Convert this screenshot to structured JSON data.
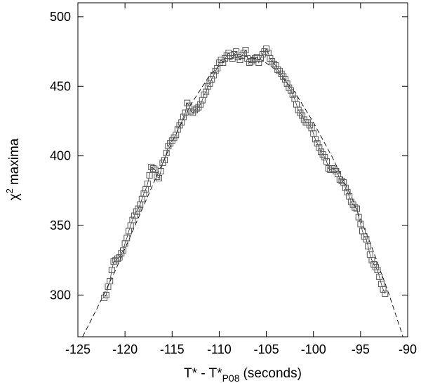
{
  "chart_data": {
    "type": "scatter",
    "title": "",
    "xlabel": {
      "main": "T* - T*",
      "sub": "P08",
      "unit": "(seconds)"
    },
    "ylabel": {
      "symbol": "χ",
      "sup": "2",
      "rest": "maxima"
    },
    "xlim": [
      -125,
      -90
    ],
    "ylim": [
      270,
      510
    ],
    "xticks": [
      -125,
      -120,
      -115,
      -110,
      -105,
      -100,
      -95,
      -90
    ],
    "yticks": [
      300,
      350,
      400,
      450,
      500
    ],
    "xtick_labels": [
      "-125",
      "-120",
      "-115",
      "-110",
      "-105",
      "-100",
      "-95",
      "-90"
    ],
    "ytick_labels": [
      "300",
      "350",
      "400",
      "450",
      "500"
    ],
    "grid": false,
    "legend": "none",
    "series": [
      {
        "style": "squares connected by thin line",
        "points": [
          [
            -122.2,
            298
          ],
          [
            -122.0,
            300
          ],
          [
            -121.8,
            306
          ],
          [
            -121.6,
            310
          ],
          [
            -121.4,
            318
          ],
          [
            -121.2,
            324
          ],
          [
            -121.0,
            325
          ],
          [
            -120.8,
            326
          ],
          [
            -120.6,
            327
          ],
          [
            -120.4,
            330
          ],
          [
            -120.2,
            332
          ],
          [
            -120.0,
            337
          ],
          [
            -119.8,
            341
          ],
          [
            -119.6,
            346
          ],
          [
            -119.4,
            350
          ],
          [
            -119.2,
            354
          ],
          [
            -119.0,
            357
          ],
          [
            -118.8,
            360
          ],
          [
            -118.6,
            362
          ],
          [
            -118.4,
            365
          ],
          [
            -118.2,
            369
          ],
          [
            -118.0,
            373
          ],
          [
            -117.8,
            376
          ],
          [
            -117.6,
            380
          ],
          [
            -117.4,
            386
          ],
          [
            -117.2,
            392
          ],
          [
            -117.0,
            391
          ],
          [
            -116.8,
            390
          ],
          [
            -116.6,
            385
          ],
          [
            -116.4,
            384
          ],
          [
            -116.2,
            389
          ],
          [
            -116.0,
            395
          ],
          [
            -115.8,
            397
          ],
          [
            -115.6,
            402
          ],
          [
            -115.4,
            407
          ],
          [
            -115.2,
            409
          ],
          [
            -115.0,
            411
          ],
          [
            -114.8,
            413
          ],
          [
            -114.6,
            415
          ],
          [
            -114.4,
            419
          ],
          [
            -114.2,
            422
          ],
          [
            -114.0,
            424
          ],
          [
            -113.8,
            428
          ],
          [
            -113.6,
            431
          ],
          [
            -113.4,
            438
          ],
          [
            -113.2,
            436
          ],
          [
            -113.0,
            432
          ],
          [
            -112.8,
            431
          ],
          [
            -112.6,
            433
          ],
          [
            -112.4,
            434
          ],
          [
            -112.2,
            435
          ],
          [
            -112.0,
            437
          ],
          [
            -111.8,
            440
          ],
          [
            -111.6,
            444
          ],
          [
            -111.4,
            446
          ],
          [
            -111.2,
            450
          ],
          [
            -111.0,
            452
          ],
          [
            -110.8,
            455
          ],
          [
            -110.6,
            458
          ],
          [
            -110.4,
            461
          ],
          [
            -110.2,
            463
          ],
          [
            -110.0,
            467
          ],
          [
            -109.8,
            469
          ],
          [
            -109.6,
            467
          ],
          [
            -109.4,
            470
          ],
          [
            -109.2,
            472
          ],
          [
            -109.0,
            474
          ],
          [
            -108.8,
            472
          ],
          [
            -108.6,
            470
          ],
          [
            -108.4,
            473
          ],
          [
            -108.2,
            475
          ],
          [
            -108.0,
            471
          ],
          [
            -107.8,
            469
          ],
          [
            -107.6,
            472
          ],
          [
            -107.4,
            474
          ],
          [
            -107.2,
            476
          ],
          [
            -107.0,
            470
          ],
          [
            -106.8,
            467
          ],
          [
            -106.6,
            468
          ],
          [
            -106.4,
            469
          ],
          [
            -106.2,
            470
          ],
          [
            -106.0,
            471
          ],
          [
            -105.8,
            467
          ],
          [
            -105.6,
            470
          ],
          [
            -105.4,
            473
          ],
          [
            -105.2,
            475
          ],
          [
            -105.0,
            477
          ],
          [
            -104.8,
            474
          ],
          [
            -104.6,
            470
          ],
          [
            -104.4,
            468
          ],
          [
            -104.2,
            466
          ],
          [
            -104.0,
            465
          ],
          [
            -103.8,
            462
          ],
          [
            -103.6,
            461
          ],
          [
            -103.4,
            459
          ],
          [
            -103.2,
            457
          ],
          [
            -103.0,
            455
          ],
          [
            -102.8,
            452
          ],
          [
            -102.6,
            449
          ],
          [
            -102.4,
            447
          ],
          [
            -102.2,
            444
          ],
          [
            -102.0,
            441
          ],
          [
            -101.8,
            437
          ],
          [
            -101.6,
            433
          ],
          [
            -101.4,
            431
          ],
          [
            -101.2,
            429
          ],
          [
            -101.0,
            426
          ],
          [
            -100.8,
            424
          ],
          [
            -100.6,
            424
          ],
          [
            -100.4,
            422
          ],
          [
            -100.2,
            420
          ],
          [
            -100.0,
            416
          ],
          [
            -99.8,
            412
          ],
          [
            -99.6,
            409
          ],
          [
            -99.4,
            406
          ],
          [
            -99.2,
            403
          ],
          [
            -99.0,
            401
          ],
          [
            -98.8,
            399
          ],
          [
            -98.6,
            396
          ],
          [
            -98.4,
            391
          ],
          [
            -98.2,
            390
          ],
          [
            -98.0,
            391
          ],
          [
            -97.8,
            390
          ],
          [
            -97.6,
            389
          ],
          [
            -97.4,
            387
          ],
          [
            -97.2,
            383
          ],
          [
            -97.0,
            382
          ],
          [
            -96.8,
            381
          ],
          [
            -96.6,
            377
          ],
          [
            -96.4,
            374
          ],
          [
            -96.2,
            371
          ],
          [
            -96.0,
            367
          ],
          [
            -95.8,
            365
          ],
          [
            -95.6,
            363
          ],
          [
            -95.4,
            362
          ],
          [
            -95.2,
            356
          ],
          [
            -95.0,
            351
          ],
          [
            -94.8,
            346
          ],
          [
            -94.6,
            342
          ],
          [
            -94.4,
            340
          ],
          [
            -94.2,
            335
          ],
          [
            -94.0,
            329
          ],
          [
            -93.8,
            325
          ],
          [
            -93.6,
            322
          ],
          [
            -93.4,
            320
          ],
          [
            -93.2,
            318
          ],
          [
            -93.0,
            313
          ],
          [
            -92.8,
            308
          ],
          [
            -92.6,
            304
          ],
          [
            -92.4,
            301
          ]
        ]
      },
      {
        "style": "dashed fit curve",
        "points": [
          [
            -124.5,
            270
          ],
          [
            -123.0,
            290
          ],
          [
            -121.0,
            318
          ],
          [
            -119.0,
            349
          ],
          [
            -117.0,
            380
          ],
          [
            -115.0,
            410
          ],
          [
            -113.0,
            437
          ],
          [
            -111.0,
            458
          ],
          [
            -109.5,
            468
          ],
          [
            -107.5,
            472
          ],
          [
            -105.5,
            469
          ],
          [
            -104.0,
            462
          ],
          [
            -102.0,
            446
          ],
          [
            -100.0,
            424
          ],
          [
            -98.0,
            399
          ],
          [
            -96.0,
            371
          ],
          [
            -94.0,
            338
          ],
          [
            -92.0,
            301
          ],
          [
            -90.5,
            270
          ]
        ]
      }
    ]
  }
}
